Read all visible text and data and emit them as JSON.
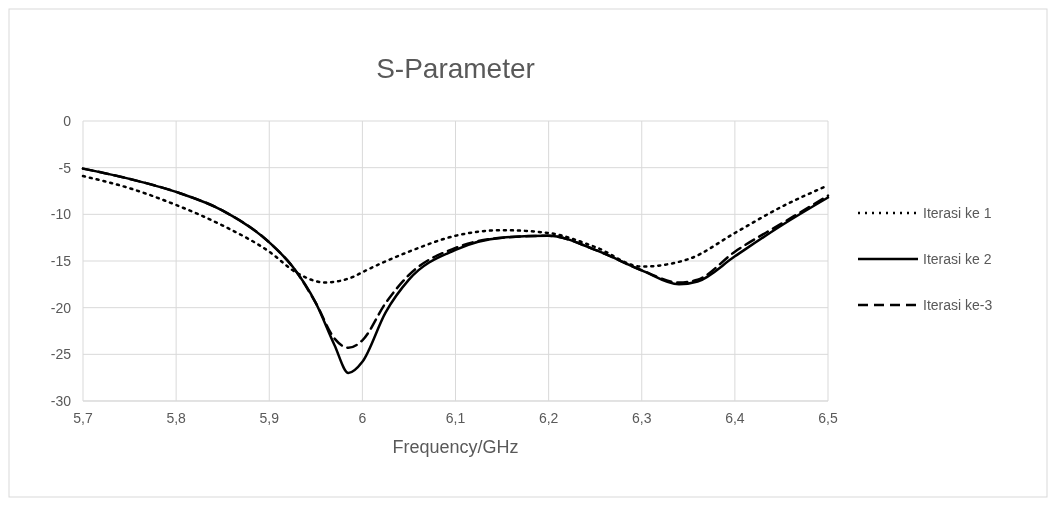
{
  "chart_data": {
    "type": "line",
    "title": "S-Parameter",
    "xlabel": "Frequency/GHz",
    "xlim": [
      5.7,
      6.5
    ],
    "xticks": [
      {
        "value": 5.7,
        "label": "5,7"
      },
      {
        "value": 5.8,
        "label": "5,8"
      },
      {
        "value": 5.9,
        "label": "5,9"
      },
      6,
      {
        "value": 6.1,
        "label": "6,1"
      },
      {
        "value": 6.2,
        "label": "6,2"
      },
      {
        "value": 6.3,
        "label": "6,3"
      },
      {
        "value": 6.4,
        "label": "6,4"
      },
      {
        "value": 6.5,
        "label": "6,5"
      }
    ],
    "ylim": [
      -30,
      0
    ],
    "yticks": [
      -30,
      -25,
      -20,
      -15,
      -10,
      -5,
      0
    ],
    "grid": true,
    "legend": "right",
    "series": [
      {
        "name": "Iterasi ke 1",
        "color": "#000000",
        "line_style": "dotted",
        "x": [
          5.7,
          5.75,
          5.8,
          5.85,
          5.9,
          5.93,
          5.96,
          5.99,
          6.0,
          6.05,
          6.1,
          6.15,
          6.2,
          6.25,
          6.3,
          6.35,
          6.4,
          6.45,
          6.5
        ],
        "values": [
          -5.9,
          -7.2,
          -9.0,
          -11.2,
          -14.0,
          -16.3,
          -17.3,
          -16.7,
          -16.2,
          -14.0,
          -12.3,
          -11.7,
          -12.0,
          -13.5,
          -15.6,
          -14.8,
          -12.0,
          -9.2,
          -6.9
        ]
      },
      {
        "name": "Iterasi ke 2",
        "color": "#000000",
        "line_style": "solid",
        "x": [
          5.7,
          5.75,
          5.8,
          5.85,
          5.9,
          5.925,
          5.95,
          5.97,
          5.985,
          6.0,
          6.025,
          6.05,
          6.1,
          6.15,
          6.2,
          6.25,
          6.3,
          6.34,
          6.36,
          6.4,
          6.45,
          6.5
        ],
        "values": [
          -5.1,
          -6.2,
          -7.6,
          -9.6,
          -13.0,
          -15.6,
          -19.5,
          -24.0,
          -27.0,
          -25.8,
          -20.5,
          -17.0,
          -13.8,
          -12.5,
          -12.3,
          -13.8,
          -16.0,
          -17.5,
          -17.2,
          -14.5,
          -11.2,
          -8.2
        ]
      },
      {
        "name": "Iterasi ke-3",
        "color": "#000000",
        "line_style": "dashed",
        "x": [
          5.7,
          5.75,
          5.8,
          5.85,
          5.9,
          5.925,
          5.95,
          5.97,
          5.985,
          6.0,
          6.025,
          6.05,
          6.1,
          6.15,
          6.2,
          6.25,
          6.3,
          6.34,
          6.36,
          6.4,
          6.45,
          6.5
        ],
        "values": [
          -5.1,
          -6.2,
          -7.6,
          -9.6,
          -13.0,
          -15.6,
          -19.5,
          -23.3,
          -24.3,
          -23.5,
          -19.5,
          -16.5,
          -13.6,
          -12.5,
          -12.3,
          -13.8,
          -16.0,
          -17.3,
          -17.0,
          -14.0,
          -11.0,
          -8.0
        ]
      }
    ]
  }
}
